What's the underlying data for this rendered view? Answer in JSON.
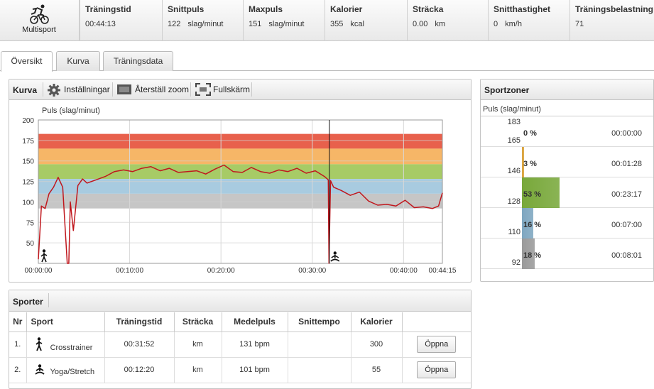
{
  "summary": {
    "sport_label": "Multisport",
    "stats": [
      {
        "title": "Träningstid",
        "value": "00:44:13",
        "unit": ""
      },
      {
        "title": "Snittpuls",
        "value": "122",
        "unit": "slag/minut"
      },
      {
        "title": "Maxpuls",
        "value": "151",
        "unit": "slag/minut"
      },
      {
        "title": "Kalorier",
        "value": "355",
        "unit": "kcal"
      },
      {
        "title": "Sträcka",
        "value": "0.00",
        "unit": "km"
      },
      {
        "title": "Snitthastighet",
        "value": "0",
        "unit": "km/h"
      },
      {
        "title": "Träningsbelastning",
        "value": "71",
        "unit": ""
      }
    ]
  },
  "tabs": [
    "Översikt",
    "Kurva",
    "Träningsdata"
  ],
  "curve_panel": {
    "title": "Kurva",
    "settings_label": "Inställningar",
    "reset_zoom_label": "Återställ zoom",
    "fullscreen_label": "Fullskärm"
  },
  "chart_data": {
    "type": "line",
    "ylabel": "Puls (slag/minut)",
    "ylim": [
      25,
      200
    ],
    "yticks": [
      50,
      75,
      100,
      125,
      150,
      175,
      200
    ],
    "xticks": [
      "00:00:00",
      "00:10:00",
      "00:20:00",
      "00:30:00",
      "00:40:00",
      "00:44:15"
    ],
    "xtick_seconds": [
      0,
      600,
      1200,
      1800,
      2400,
      2655
    ],
    "duration_seconds": 2655,
    "marker_seconds": 1912,
    "zones": [
      {
        "from": 165,
        "to": 183,
        "color": "#e8604c"
      },
      {
        "from": 146,
        "to": 165,
        "color": "#f6b667"
      },
      {
        "from": 128,
        "to": 146,
        "color": "#a7cb66"
      },
      {
        "from": 110,
        "to": 128,
        "color": "#a8cbe0"
      },
      {
        "from": 92,
        "to": 110,
        "color": "#c6c6c6"
      }
    ],
    "series": [
      {
        "color": "#c0171d",
        "x": [
          0,
          20,
          45,
          70,
          100,
          130,
          160,
          190,
          200,
          210,
          230,
          260,
          290,
          320,
          380,
          440,
          500,
          560,
          620,
          680,
          740,
          800,
          860,
          920,
          980,
          1040,
          1100,
          1160,
          1220,
          1280,
          1340,
          1400,
          1460,
          1520,
          1580,
          1640,
          1700,
          1760,
          1820,
          1880,
          1905,
          1910,
          1920,
          1940,
          1990,
          2050,
          2110,
          2170,
          2230,
          2290,
          2350,
          2410,
          2470,
          2530,
          2590,
          2630,
          2655
        ],
        "y": [
          30,
          95,
          92,
          110,
          118,
          130,
          118,
          20,
          20,
          100,
          65,
          120,
          128,
          123,
          127,
          131,
          137,
          139,
          137,
          141,
          143,
          138,
          141,
          136,
          137,
          138,
          134,
          140,
          145,
          137,
          136,
          142,
          137,
          135,
          139,
          137,
          141,
          135,
          138,
          131,
          127,
          20,
          126,
          118,
          114,
          108,
          112,
          101,
          96,
          97,
          95,
          102,
          93,
          94,
          92,
          95,
          111
        ]
      }
    ],
    "markers": [
      "crosstrainer-icon",
      "yoga-icon"
    ]
  },
  "zones_panel": {
    "title": "Sportzoner",
    "subtitle": "Puls (slag/minut)",
    "top_value": "183",
    "rows": [
      {
        "low": "165",
        "percent": "0 %",
        "fraction": 0.0,
        "time": "00:00:00",
        "color": "#e8604c"
      },
      {
        "low": "146",
        "percent": "3 %",
        "fraction": 0.03,
        "time": "00:01:28",
        "color": "#d9a23a"
      },
      {
        "low": "128",
        "percent": "53 %",
        "fraction": 0.53,
        "time": "00:23:17",
        "color": "#78a83a"
      },
      {
        "low": "110",
        "percent": "16 %",
        "fraction": 0.16,
        "time": "00:07:00",
        "color": "#7ea6c0"
      },
      {
        "low": "92",
        "percent": "18 %",
        "fraction": 0.18,
        "time": "00:08:01",
        "color": "#9a9a9a"
      }
    ]
  },
  "sports_panel": {
    "title": "Sporter",
    "columns": [
      "Nr",
      "Sport",
      "Träningstid",
      "Sträcka",
      "Medelpuls",
      "Snittempo",
      "Kalorier",
      ""
    ],
    "rows": [
      {
        "nr": "1.",
        "icon": "crosstrainer-icon",
        "sport": "Crosstrainer",
        "time": "00:31:52",
        "distance": "km",
        "avg_hr": "131 bpm",
        "pace": "",
        "calories": "300",
        "button": "Öppna"
      },
      {
        "nr": "2.",
        "icon": "yoga-icon",
        "sport": "Yoga/Stretch",
        "time": "00:12:20",
        "distance": "km",
        "avg_hr": "101 bpm",
        "pace": "",
        "calories": "55",
        "button": "Öppna"
      }
    ]
  }
}
